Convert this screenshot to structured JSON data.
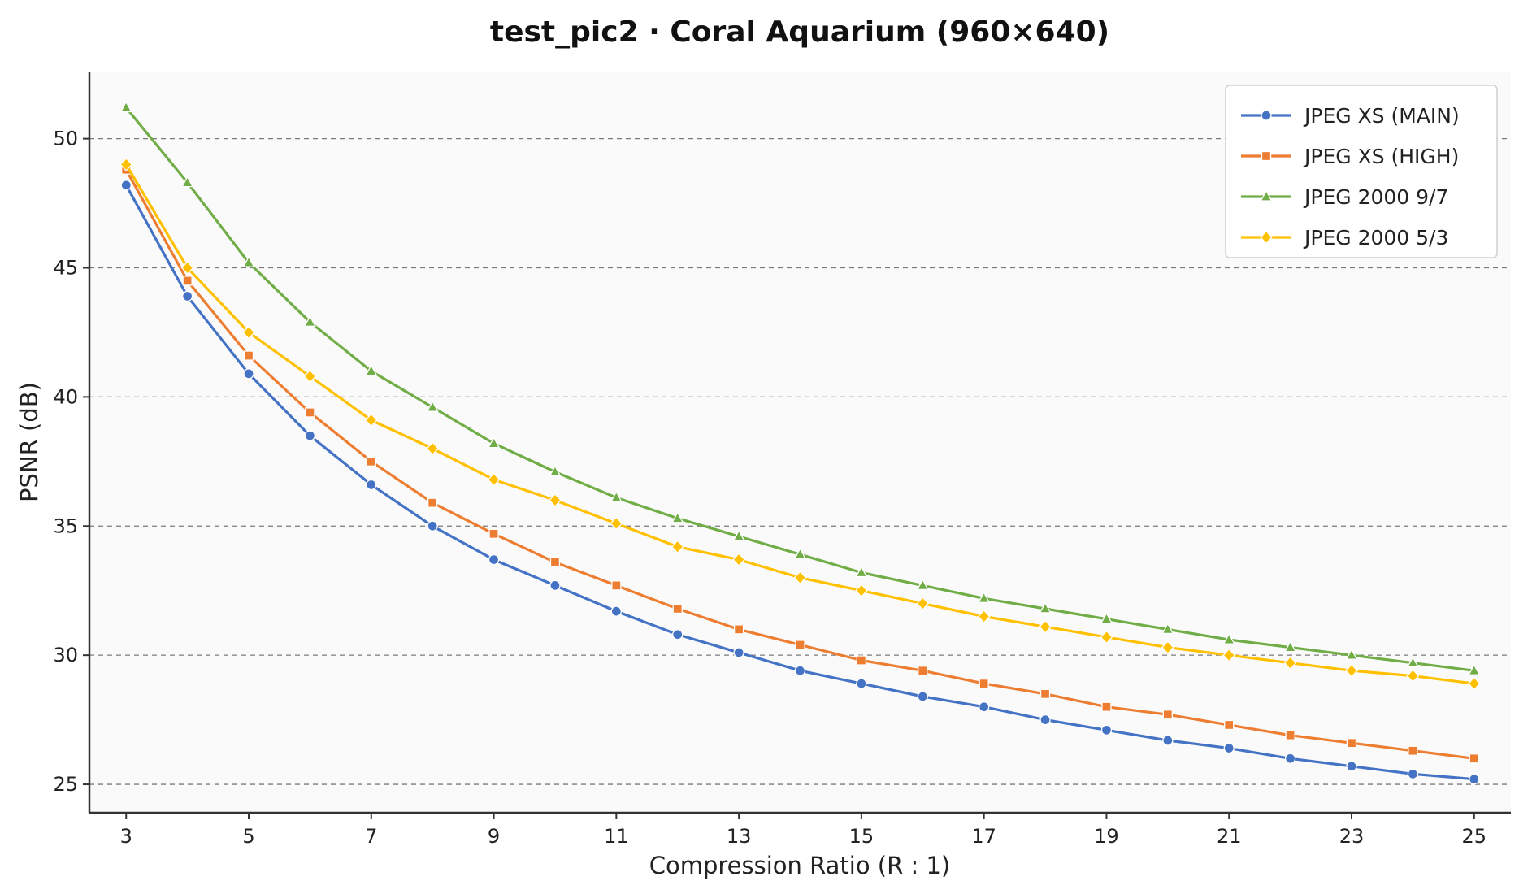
{
  "chart_data": {
    "type": "line",
    "title": "test_pic2  ·  Coral Aquarium  (960×640)",
    "xlabel": "Compression Ratio (R : 1)",
    "ylabel": "PSNR (dB)",
    "xlim": [
      2.4,
      25.6
    ],
    "ylim": [
      23.9,
      52.6
    ],
    "xticks": [
      3,
      5,
      7,
      9,
      11,
      13,
      15,
      17,
      19,
      21,
      23,
      25
    ],
    "yticks": [
      25,
      30,
      35,
      40,
      45,
      50
    ],
    "grid": "horizontal-dashed",
    "legend_position": "top-right",
    "x": [
      3,
      4,
      5,
      6,
      7,
      8,
      9,
      10,
      11,
      12,
      13,
      14,
      15,
      16,
      17,
      18,
      19,
      20,
      21,
      22,
      23,
      24,
      25
    ],
    "series": [
      {
        "name": "JPEG XS (MAIN)",
        "color": "#4472c4",
        "marker": "circle",
        "values": [
          48.2,
          43.9,
          40.9,
          38.5,
          36.6,
          35.0,
          33.7,
          32.7,
          31.7,
          30.8,
          30.1,
          29.4,
          28.9,
          28.4,
          28.0,
          27.5,
          27.1,
          26.7,
          26.4,
          26.0,
          25.7,
          25.4,
          25.2
        ]
      },
      {
        "name": "JPEG XS (HIGH)",
        "color": "#ed7d31",
        "marker": "square",
        "values": [
          48.8,
          44.5,
          41.6,
          39.4,
          37.5,
          35.9,
          34.7,
          33.6,
          32.7,
          31.8,
          31.0,
          30.4,
          29.8,
          29.4,
          28.9,
          28.5,
          28.0,
          27.7,
          27.3,
          26.9,
          26.6,
          26.3,
          26.0
        ]
      },
      {
        "name": "JPEG 2000 9/7",
        "color": "#70ad47",
        "marker": "triangle",
        "values": [
          51.2,
          48.3,
          45.2,
          42.9,
          41.0,
          39.6,
          38.2,
          37.1,
          36.1,
          35.3,
          34.6,
          33.9,
          33.2,
          32.7,
          32.2,
          31.8,
          31.4,
          31.0,
          30.6,
          30.3,
          30.0,
          29.7,
          29.4
        ]
      },
      {
        "name": "JPEG 2000 5/3",
        "color": "#ffc000",
        "marker": "diamond",
        "values": [
          49.0,
          45.0,
          42.5,
          40.8,
          39.1,
          38.0,
          36.8,
          36.0,
          35.1,
          34.2,
          33.7,
          33.0,
          32.5,
          32.0,
          31.5,
          31.1,
          30.7,
          30.3,
          30.0,
          29.7,
          29.4,
          29.2,
          28.9
        ]
      }
    ]
  }
}
